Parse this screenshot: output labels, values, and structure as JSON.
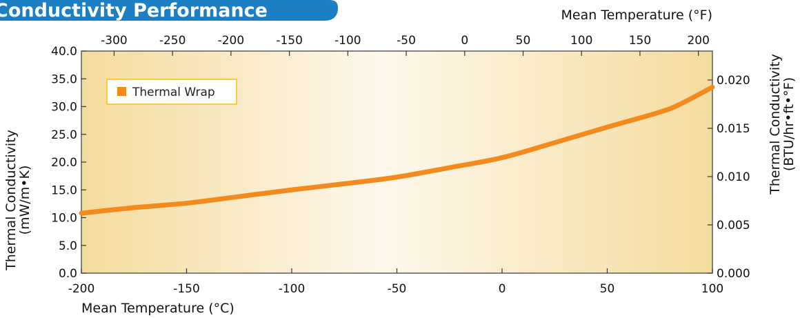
{
  "header": {
    "title": "Conductivity Performance"
  },
  "chart_data": {
    "type": "line",
    "title": "",
    "x_bottom": {
      "label": "Mean Temperature (°C)",
      "range": [
        -200,
        100
      ],
      "ticks": [
        -200,
        -150,
        -100,
        -50,
        0,
        50,
        100
      ],
      "tick_labels": [
        "-200",
        "-150",
        "-100",
        "-50",
        "0",
        "50",
        "100"
      ]
    },
    "x_top": {
      "label": "Mean Temperature (°F)",
      "ticks": [
        -300,
        -250,
        -200,
        -150,
        -100,
        -50,
        0,
        50,
        100,
        150,
        200
      ],
      "tick_labels": [
        "-300",
        "-250",
        "-200",
        "-150",
        "-100",
        "-50",
        "0",
        "50",
        "100",
        "150",
        "200"
      ]
    },
    "y_left": {
      "label_line1": "Thermal Conductivity",
      "label_line2": "(mW/m•K)",
      "range": [
        0,
        40
      ],
      "ticks": [
        0,
        5,
        10,
        15,
        20,
        25,
        30,
        35,
        40
      ],
      "tick_labels": [
        "0.0",
        "5.0",
        "10.0",
        "15.0",
        "20.0",
        "25.0",
        "30.0",
        "35.0",
        "40.0"
      ]
    },
    "y_right": {
      "label_line1": "Thermal Conductivity",
      "label_line2": "(BTU/hr•ft•°F)",
      "range": [
        0,
        0.023
      ],
      "ticks": [
        0,
        0.005,
        0.01,
        0.015,
        0.02
      ],
      "tick_labels": [
        "0.000",
        "0.005",
        "0.010",
        "0.015",
        "0.020"
      ]
    },
    "series": [
      {
        "name": "Thermal Wrap",
        "color": "#f28a1e",
        "x": [
          -200,
          -175,
          -150,
          -125,
          -100,
          -75,
          -50,
          -25,
          0,
          25,
          50,
          75,
          85,
          100
        ],
        "y": [
          10.8,
          11.8,
          12.6,
          13.8,
          15.0,
          16.1,
          17.3,
          19.0,
          20.8,
          23.5,
          26.3,
          29.0,
          30.5,
          33.5
        ]
      }
    ],
    "legend": {
      "position": "top-left"
    },
    "grid": false,
    "background": {
      "fill": "gradient",
      "colors": [
        "#f6dea2",
        "#fdf8ec",
        "#f6dea2"
      ]
    }
  }
}
